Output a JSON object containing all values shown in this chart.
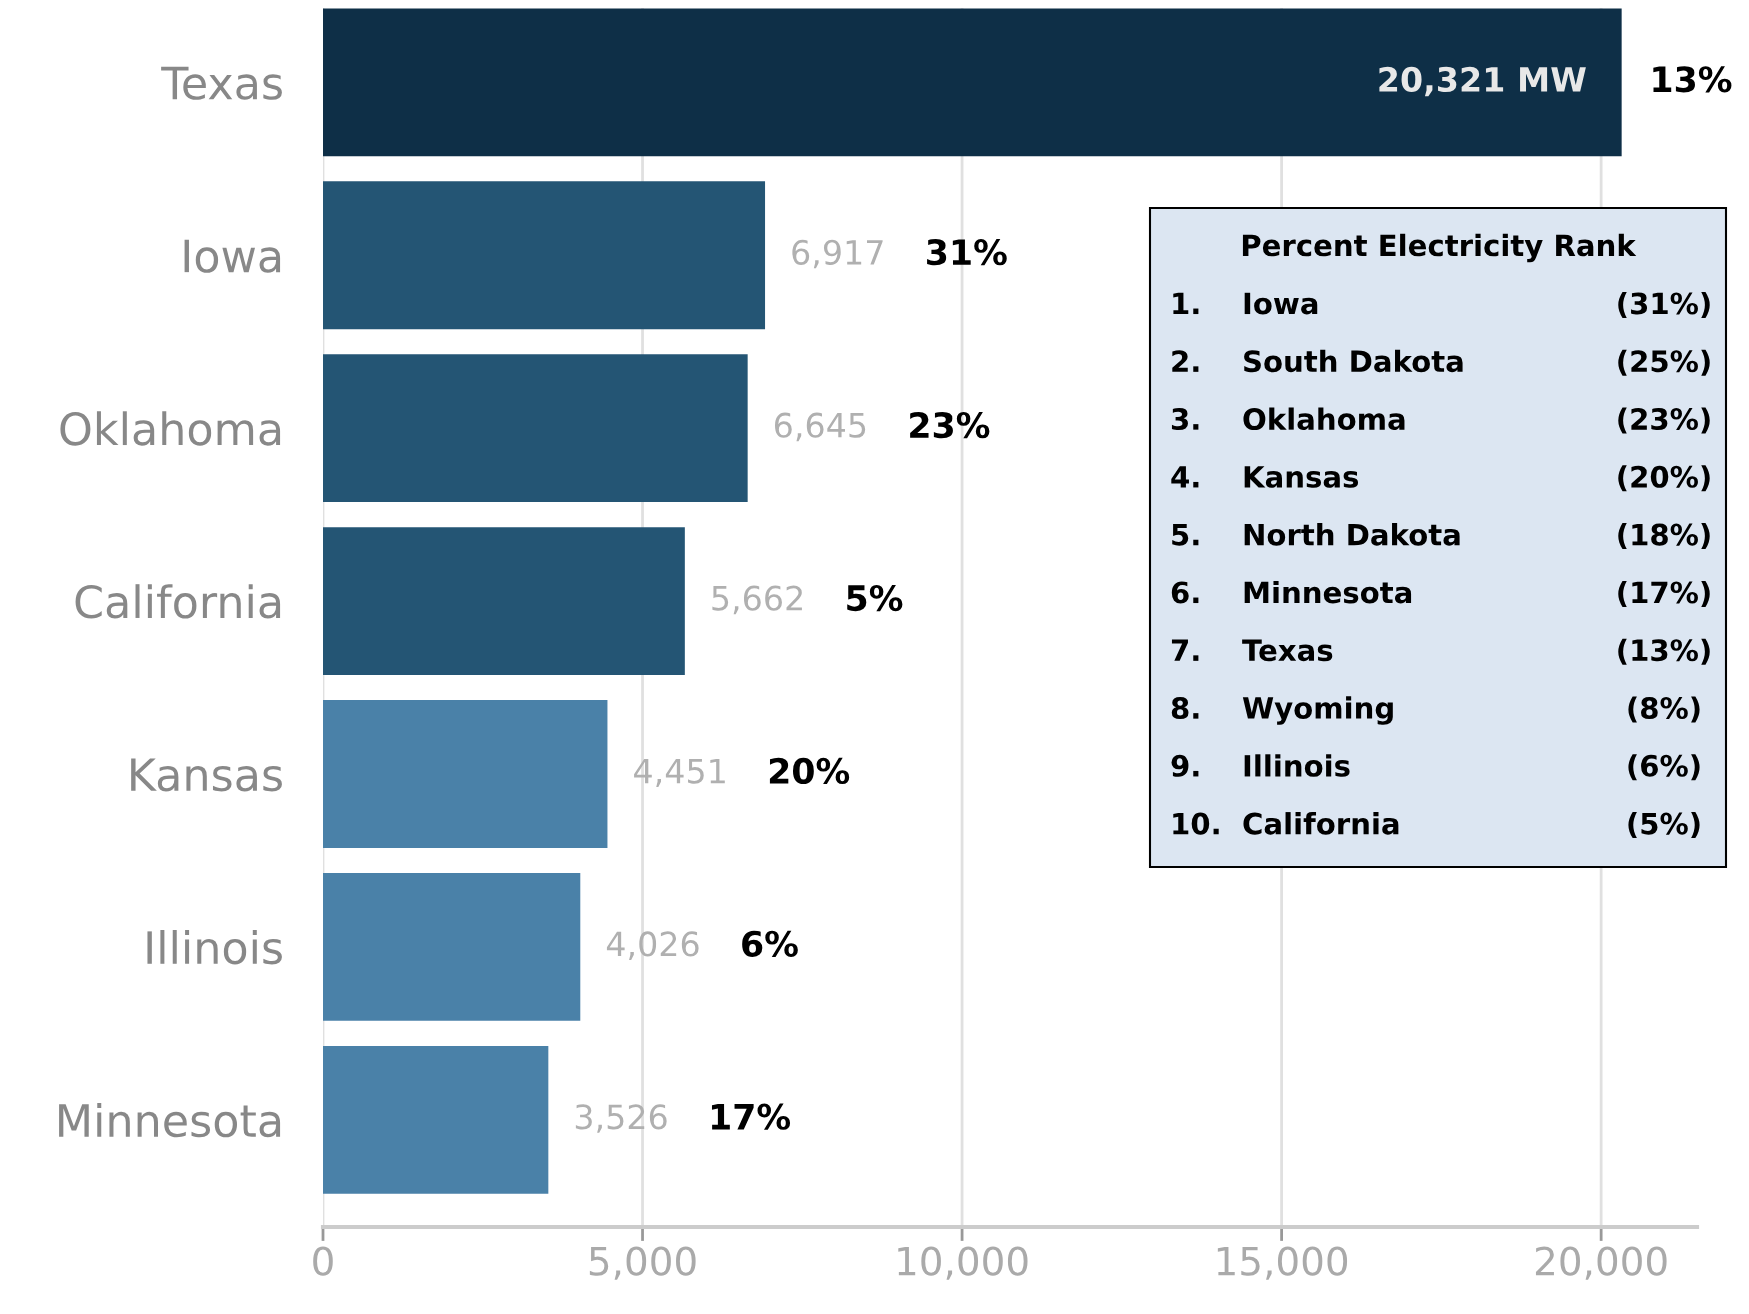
{
  "chart_data": {
    "type": "bar",
    "orientation": "horizontal",
    "categories": [
      "Texas",
      "Iowa",
      "Oklahoma",
      "California",
      "Kansas",
      "Illinois",
      "Minnesota"
    ],
    "values": [
      20321,
      6917,
      6645,
      5662,
      4451,
      4026,
      3526
    ],
    "colors": [
      "#0e2f47",
      "#245574",
      "#245574",
      "#245574",
      "#4a81a8",
      "#4a81a8",
      "#4a81a8"
    ],
    "value_labels": [
      "20,321 MW",
      "6,917",
      "6,645",
      "5,662",
      "4,451",
      "4,026",
      "3,526"
    ],
    "xlim": [
      0,
      21500
    ],
    "xticks": [
      {
        "value": 0,
        "label": "0"
      },
      {
        "value": 5000,
        "label": "5,000"
      },
      {
        "value": 10000,
        "label": "10,000"
      },
      {
        "value": 15000,
        "label": "15,000"
      },
      {
        "value": 20000,
        "label": "20,000"
      }
    ],
    "grid": "x",
    "annotations": [
      "13%",
      "31%",
      "23%",
      "5%",
      "20%",
      "6%",
      "17%",
      "Percent Electricity Rank",
      "1.",
      "Iowa",
      "(31%)",
      "2.",
      "South Dakota",
      "(25%)",
      "3.",
      "Oklahoma",
      "(23%)",
      "4.",
      "Kansas",
      "(20%)",
      "5.",
      "North Dakota",
      "(18%)",
      "6.",
      "Minnesota",
      "(17%)",
      "7.",
      "Texas",
      "(13%)",
      "8.",
      "Wyoming",
      "(8%)",
      "9.",
      "Illinois",
      "(6%)",
      "10.",
      "California",
      "(5%)"
    ]
  }
}
